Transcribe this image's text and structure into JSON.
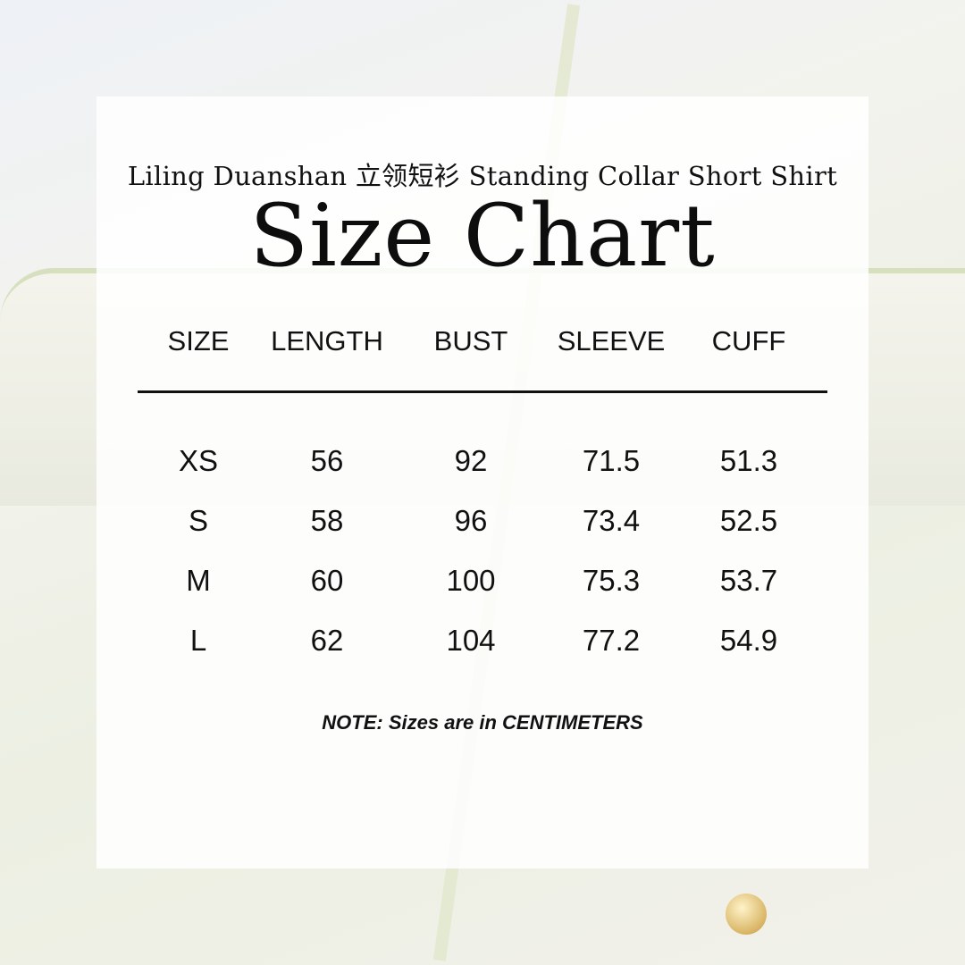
{
  "subtitle": "Liling Duanshan 立领短衫 Standing Collar Short Shirt",
  "title": "Size Chart",
  "table": {
    "headers": [
      "SIZE",
      "LENGTH",
      "BUST",
      "SLEEVE",
      "CUFF"
    ],
    "rows": [
      [
        "XS",
        "56",
        "92",
        "71.5",
        "51.3"
      ],
      [
        "S",
        "58",
        "96",
        "73.4",
        "52.5"
      ],
      [
        "M",
        "60",
        "100",
        "75.3",
        "53.7"
      ],
      [
        "L",
        "62",
        "104",
        "77.2",
        "54.9"
      ]
    ]
  },
  "note": "NOTE: Sizes are in CENTIMETERS"
}
